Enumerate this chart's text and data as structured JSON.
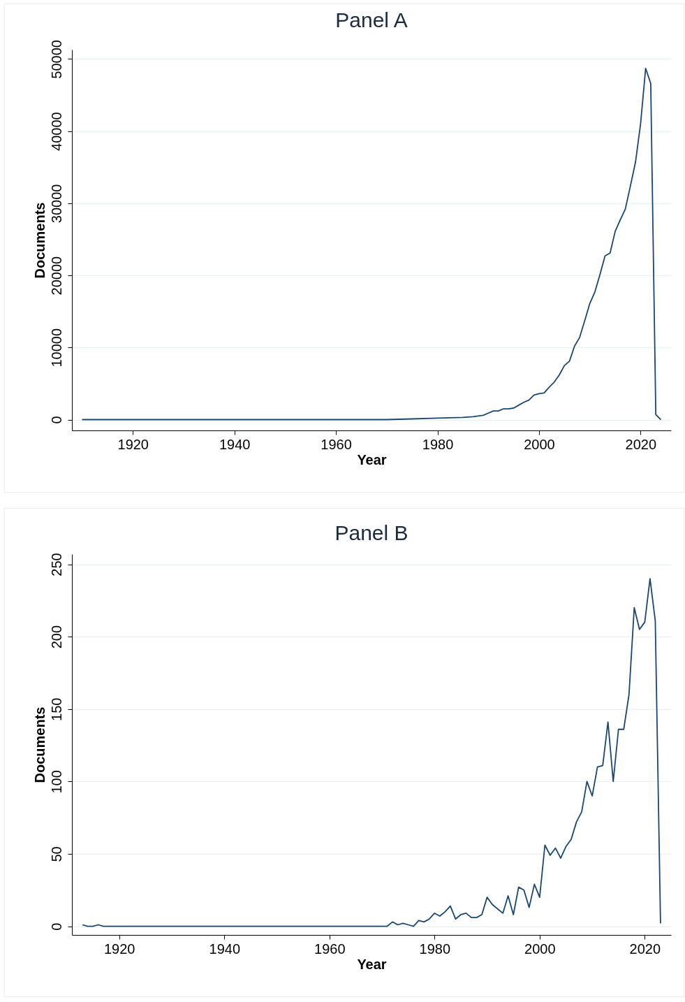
{
  "chart_data": [
    {
      "type": "line",
      "title": "Panel A",
      "xlabel": "Year",
      "ylabel": "Documents",
      "color": "#1a476f",
      "grid": "y",
      "x": [
        1910,
        1920,
        1930,
        1940,
        1950,
        1960,
        1965,
        1970,
        1975,
        1980,
        1985,
        1987,
        1988,
        1989,
        1990,
        1991,
        1992,
        1993,
        1994,
        1995,
        1996,
        1997,
        1998,
        1999,
        2000,
        2001,
        2002,
        2003,
        2004,
        2005,
        2006,
        2007,
        2008,
        2009,
        2010,
        2011,
        2012,
        2013,
        2014,
        2015,
        2016,
        2017,
        2018,
        2019,
        2020,
        2021,
        2022,
        2023,
        2024
      ],
      "values": [
        0,
        0,
        0,
        0,
        0,
        0,
        0,
        0,
        100,
        200,
        300,
        400,
        500,
        600,
        900,
        1200,
        1200,
        1500,
        1500,
        1600,
        2000,
        2400,
        2700,
        3400,
        3600,
        3700,
        4500,
        5200,
        6200,
        7500,
        8100,
        10200,
        11400,
        13700,
        16100,
        17700,
        20100,
        22700,
        23100,
        26100,
        27700,
        29200,
        32400,
        35700,
        41000,
        48700,
        46600,
        700,
        0
      ],
      "xlim": [
        1908,
        2026
      ],
      "xticks": [
        1920,
        1940,
        1960,
        1980,
        2000,
        2020
      ],
      "ylim": [
        -1500,
        51300
      ],
      "yticks": [
        0,
        10000,
        20000,
        30000,
        40000,
        50000
      ]
    },
    {
      "type": "line",
      "title": "Panel B",
      "xlabel": "Year",
      "ylabel": "Documents",
      "color": "#1a476f",
      "grid": "y",
      "x": [
        1913,
        1914,
        1915,
        1916,
        1917,
        1970,
        1971,
        1972,
        1973,
        1974,
        1975,
        1976,
        1977,
        1978,
        1979,
        1980,
        1981,
        1982,
        1983,
        1984,
        1985,
        1986,
        1987,
        1988,
        1989,
        1990,
        1991,
        1992,
        1993,
        1994,
        1995,
        1996,
        1997,
        1998,
        1999,
        2000,
        2001,
        2002,
        2003,
        2004,
        2005,
        2006,
        2007,
        2008,
        2009,
        2010,
        2011,
        2012,
        2013,
        2014,
        2015,
        2016,
        2017,
        2018,
        2019,
        2020,
        2021,
        2022,
        2023
      ],
      "values": [
        1,
        0,
        0,
        1,
        0,
        0,
        0,
        3,
        1,
        2,
        1,
        0,
        4,
        3,
        5,
        9,
        7,
        10,
        14,
        5,
        8,
        9,
        6,
        6,
        8,
        20,
        15,
        12,
        9,
        21,
        8,
        27,
        25,
        13,
        29,
        20,
        56,
        49,
        54,
        47,
        55,
        60,
        72,
        79,
        100,
        90,
        110,
        111,
        141,
        100,
        136,
        136,
        160,
        220,
        205,
        210,
        240,
        211,
        2
      ],
      "xlim": [
        1911,
        2025
      ],
      "xticks": [
        1920,
        1940,
        1960,
        1980,
        2000,
        2020
      ],
      "ylim": [
        -6,
        257
      ],
      "yticks": [
        0,
        50,
        100,
        150,
        200,
        250
      ]
    }
  ]
}
